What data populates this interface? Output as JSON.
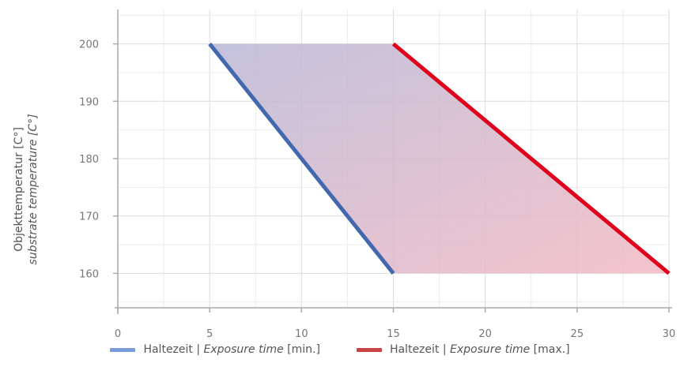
{
  "chart_data": {
    "type": "line",
    "title": "",
    "xlabel": "",
    "ylabel": {
      "line1": "Objekttemperatur [C°]",
      "line2": "substrate temperature [C°]"
    },
    "xlim": [
      0,
      30
    ],
    "ylim": [
      154,
      206
    ],
    "x_ticks": [
      0,
      5,
      10,
      15,
      20,
      25,
      30
    ],
    "y_ticks": [
      160,
      170,
      180,
      190,
      200
    ],
    "grid": true,
    "legend_position": "bottom-center",
    "series": [
      {
        "name_prefix": "Haltezeit | ",
        "name_italic": "Exposure time",
        "name_suffix": " [min.]",
        "color": "#4468ad",
        "legend_color": "#7a9fd8",
        "points": [
          [
            5,
            200
          ],
          [
            15,
            160
          ]
        ]
      },
      {
        "name_prefix": "Haltezeit | ",
        "name_italic": "Exposure time",
        "name_suffix": " [max.]",
        "color": "#e0001b",
        "legend_color": "#c94545",
        "points": [
          [
            15,
            200
          ],
          [
            30,
            160
          ]
        ]
      }
    ],
    "fill_between": {
      "color_start": "#b9b8d6",
      "color_end": "#f3b9c3"
    }
  }
}
